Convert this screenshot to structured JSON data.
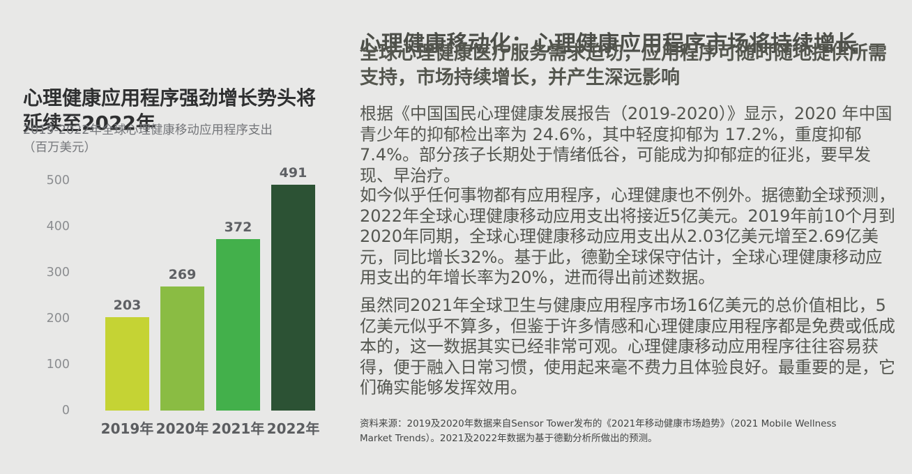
{
  "chart_data": {
    "type": "bar",
    "title": "心理健康应用程序强劲增长势头将延续至2022年",
    "subtitle": "2019-2022年全球心理健康移动应用程序支出",
    "unit_label": "（百万美元）",
    "categories": [
      "2019年",
      "2020年",
      "2021年",
      "2022年"
    ],
    "values": [
      203,
      269,
      372,
      491
    ],
    "bar_colors": [
      "#c5d334",
      "#8abc43",
      "#43b04b",
      "#2c5234"
    ],
    "ylim": [
      0,
      500
    ],
    "yticks": [
      500,
      400,
      300,
      200,
      100,
      0
    ],
    "grid": false,
    "value_labels": true,
    "legend": "none"
  },
  "article": {
    "title": "心理健康移动化：心理健康应用程序市场将持续增长",
    "lede": "全球心理健康医疗服务需求迫切，应用程序可随时随地提供所需支持，市场持续增长，并产生深远影响",
    "paragraphs": [
      "根据《中国国民心理健康发展报告（2019-2020）》显示，2020 年中国青少年的抑郁检出率为 24.6%，其中轻度抑郁为 17.2%，重度抑郁7.4%。部分孩子长期处于情绪低谷，可能成为抑郁症的征兆，要早发现、早治疗。",
      "如今似乎任何事物都有应用程序，心理健康也不例外。据德勤全球预测，2022年全球心理健康移动应用支出将接近5亿美元。2019年前10个月到2020年同期，全球心理健康移动应用支出从2.03亿美元增至2.69亿美元，同比增长32%。基于此，德勤全球保守估计，全球心理健康移动应用支出的年增长率为20%，进而得出前述数据。",
      "虽然同2021年全球卫生与健康应用程序市场16亿美元的总价值相比，5亿美元似乎不算多，但鉴于许多情感和心理健康应用程序都是免费或低成本的，这一数据其实已经非常可观。心理健康移动应用程序往往容易获得，便于融入日常习惯，使用起来毫不费力且体验良好。最重要的是，它们确实能够发挥效用。"
    ],
    "source": "资料来源：2019及2020年数据来自Sensor Tower发布的《2021年移动健康市场趋势》（2021 Mobile Wellness Market Trends）。2021及2022年数据为基于德勤分析所做出的预测。"
  },
  "colors": {
    "page_background": "#e8e8e7"
  }
}
